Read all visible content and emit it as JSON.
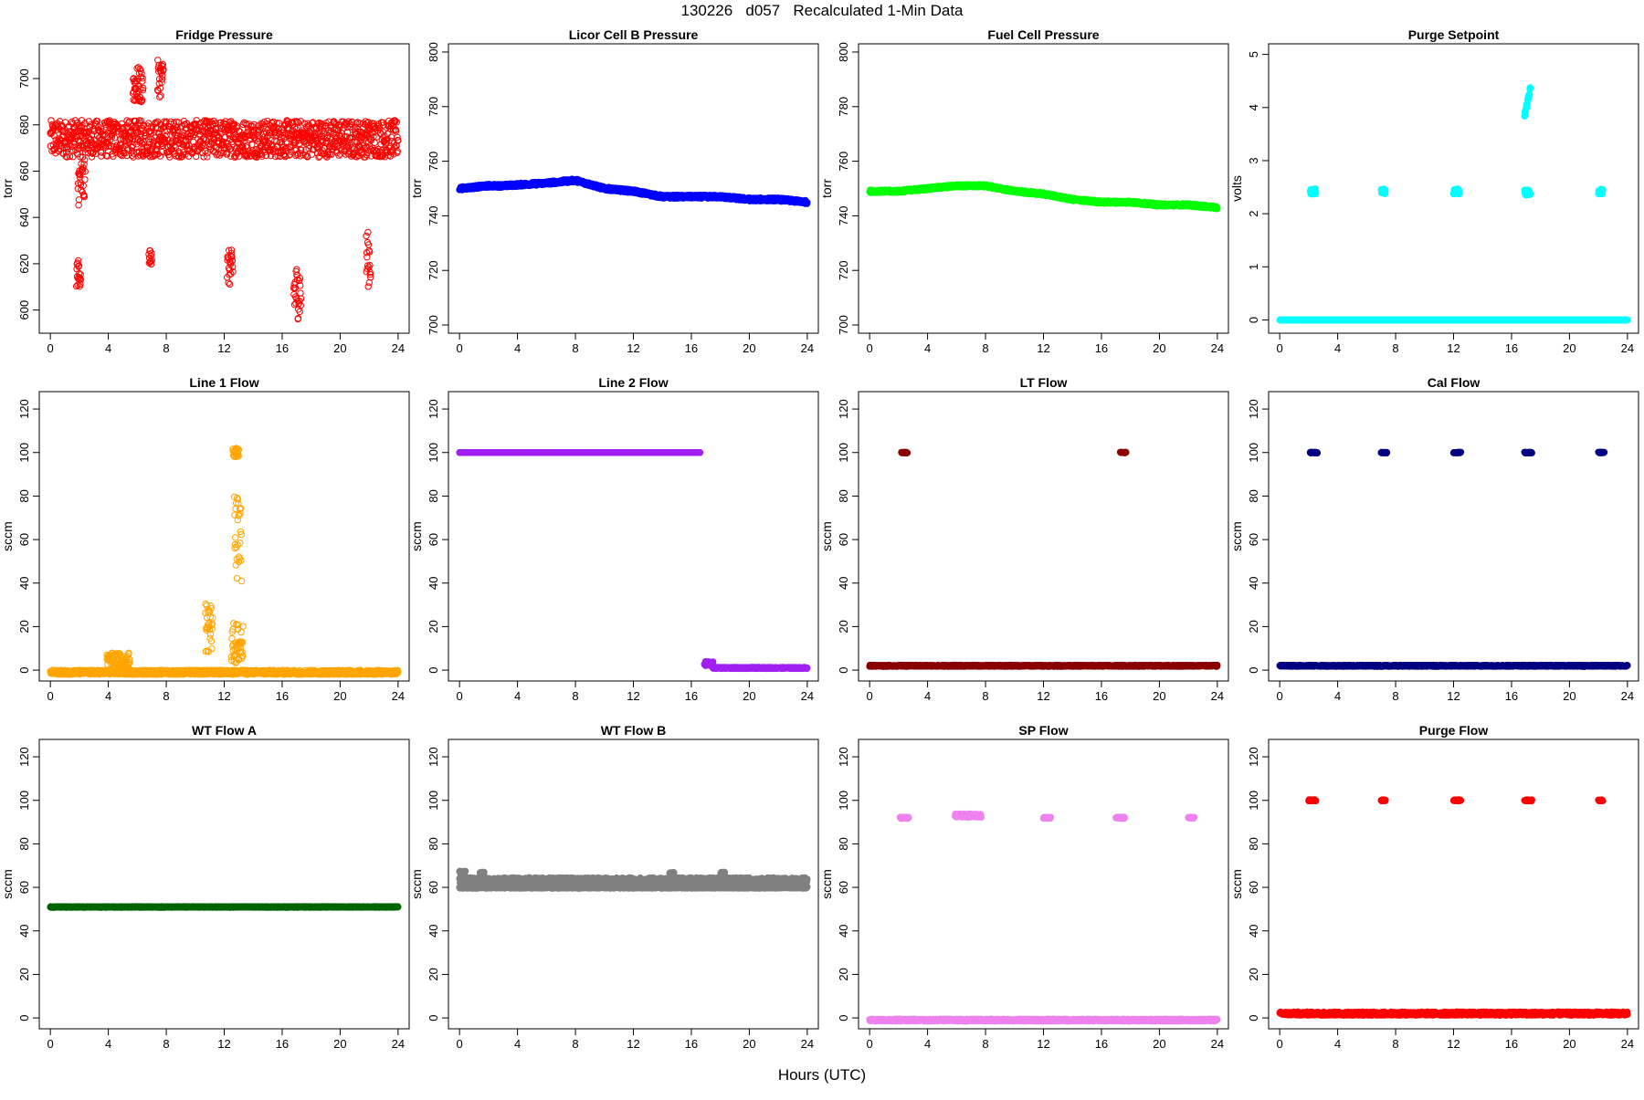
{
  "page": {
    "title": "130226   d057   Recalculated 1-Min Data",
    "xlabel": "Hours (UTC)"
  },
  "chart_data": [
    {
      "type": "scatter",
      "title": "Fridge Pressure",
      "ylabel": "torr",
      "color": "#ff0000",
      "xlim": [
        0,
        24
      ],
      "ylim": [
        590,
        715
      ],
      "yticks": [
        600,
        620,
        640,
        660,
        680,
        700
      ],
      "xticks": [
        0,
        4,
        8,
        12,
        16,
        20,
        24
      ],
      "filled": false,
      "series": [
        {
          "x": [
            0,
            24
          ],
          "y": [
            674,
            674
          ],
          "spread": 8
        },
        {
          "x": [
            5.7,
            6.4
          ],
          "y": [
            697,
            697
          ],
          "spread": 8
        },
        {
          "x": [
            7.4,
            7.8
          ],
          "y": [
            700,
            700
          ],
          "spread": 8
        },
        {
          "x": [
            1.9,
            2.4
          ],
          "y": [
            655,
            655
          ],
          "spread": 10
        },
        {
          "x": [
            1.8,
            2.1
          ],
          "y": [
            616,
            616
          ],
          "spread": 6
        },
        {
          "x": [
            12.2,
            12.6
          ],
          "y": [
            618,
            618
          ],
          "spread": 8
        },
        {
          "x": [
            16.8,
            17.3
          ],
          "y": [
            608,
            608
          ],
          "spread": 12
        },
        {
          "x": [
            21.8,
            22.1
          ],
          "y": [
            622,
            622
          ],
          "spread": 12
        },
        {
          "x": [
            6.8,
            7.0
          ],
          "y": [
            622,
            622
          ],
          "spread": 4
        }
      ]
    },
    {
      "type": "scatter",
      "title": "Licor Cell B Pressure",
      "ylabel": "torr",
      "color": "#0000ff",
      "xlim": [
        0,
        24
      ],
      "ylim": [
        697,
        803
      ],
      "yticks": [
        700,
        720,
        740,
        760,
        780,
        800
      ],
      "xticks": [
        0,
        4,
        8,
        12,
        16,
        20,
        24
      ],
      "filled": true,
      "series": [
        {
          "x": [
            0,
            2,
            3,
            6,
            8,
            10,
            12,
            14,
            16,
            18,
            20,
            22,
            24
          ],
          "y": [
            750,
            751,
            751,
            752,
            753,
            750,
            749,
            747,
            747,
            747,
            746,
            746,
            745
          ],
          "spread": 0.6
        }
      ]
    },
    {
      "type": "scatter",
      "title": "Fuel Cell Pressure",
      "ylabel": "torr",
      "color": "#00ff00",
      "xlim": [
        0,
        24
      ],
      "ylim": [
        697,
        803
      ],
      "yticks": [
        700,
        720,
        740,
        760,
        780,
        800
      ],
      "xticks": [
        0,
        4,
        8,
        12,
        16,
        20,
        24
      ],
      "filled": true,
      "series": [
        {
          "x": [
            0,
            2,
            4,
            6,
            8,
            10,
            12,
            14,
            16,
            18,
            20,
            22,
            24
          ],
          "y": [
            749,
            749,
            750,
            751,
            751,
            749,
            748,
            746,
            745,
            745,
            744,
            744,
            743
          ],
          "spread": 0.5
        }
      ]
    },
    {
      "type": "scatter",
      "title": "Purge Setpoint",
      "ylabel": "volts",
      "color": "#00ffff",
      "xlim": [
        0,
        24
      ],
      "ylim": [
        -0.25,
        5.2
      ],
      "yticks": [
        0,
        1,
        2,
        3,
        4,
        5
      ],
      "xticks": [
        0,
        4,
        8,
        12,
        16,
        20,
        24
      ],
      "filled": true,
      "series": [
        {
          "x": [
            0,
            24
          ],
          "y": [
            0,
            0
          ],
          "spread": 0
        },
        {
          "x": [
            2.1,
            2.5
          ],
          "y": [
            2.42,
            2.42
          ],
          "spread": 0.05
        },
        {
          "x": [
            7.0,
            7.3
          ],
          "y": [
            2.42,
            2.42
          ],
          "spread": 0.05
        },
        {
          "x": [
            12.0,
            12.4
          ],
          "y": [
            2.42,
            2.42
          ],
          "spread": 0.05
        },
        {
          "x": [
            16.9,
            17.3
          ],
          "y": [
            2.4,
            2.4
          ],
          "spread": 0.05
        },
        {
          "x": [
            22.0,
            22.3
          ],
          "y": [
            2.42,
            2.42
          ],
          "spread": 0.05
        },
        {
          "x": [
            16.9,
            17.3
          ],
          "y": [
            3.85,
            4.35
          ],
          "spread": 0.05
        }
      ]
    },
    {
      "type": "scatter",
      "title": "Line 1 Flow",
      "ylabel": "sccm",
      "color": "#ffa500",
      "xlim": [
        0,
        24
      ],
      "ylim": [
        -5,
        128
      ],
      "yticks": [
        0,
        20,
        40,
        60,
        80,
        100,
        120
      ],
      "xticks": [
        0,
        4,
        8,
        12,
        16,
        20,
        24
      ],
      "filled": false,
      "series": [
        {
          "x": [
            0,
            24
          ],
          "y": [
            -1,
            -1
          ],
          "spread": 1
        },
        {
          "x": [
            3.9,
            5.5
          ],
          "y": [
            4,
            4
          ],
          "spread": 4
        },
        {
          "x": [
            10.7,
            11.2
          ],
          "y": [
            20,
            20
          ],
          "spread": 12
        },
        {
          "x": [
            12.6,
            13.0
          ],
          "y": [
            100,
            100
          ],
          "spread": 2
        },
        {
          "x": [
            12.7,
            13.2
          ],
          "y": [
            60,
            60
          ],
          "spread": 20
        },
        {
          "x": [
            12.5,
            13.3
          ],
          "y": [
            12,
            12
          ],
          "spread": 10
        }
      ]
    },
    {
      "type": "scatter",
      "title": "Line 2 Flow",
      "ylabel": "sccm",
      "color": "#a020f0",
      "xlim": [
        0,
        24
      ],
      "ylim": [
        -5,
        128
      ],
      "yticks": [
        0,
        20,
        40,
        60,
        80,
        100,
        120
      ],
      "xticks": [
        0,
        4,
        8,
        12,
        16,
        20,
        24
      ],
      "filled": true,
      "series": [
        {
          "x": [
            0,
            16.6
          ],
          "y": [
            100,
            100
          ],
          "spread": 0
        },
        {
          "x": [
            16.9,
            17.5
          ],
          "y": [
            3,
            3
          ],
          "spread": 1
        },
        {
          "x": [
            17.5,
            24
          ],
          "y": [
            1,
            1
          ],
          "spread": 0.3
        }
      ]
    },
    {
      "type": "scatter",
      "title": "LT Flow",
      "ylabel": "sccm",
      "color": "#8b0000",
      "xlim": [
        0,
        24
      ],
      "ylim": [
        -5,
        128
      ],
      "yticks": [
        0,
        20,
        40,
        60,
        80,
        100,
        120
      ],
      "xticks": [
        0,
        4,
        8,
        12,
        16,
        20,
        24
      ],
      "filled": true,
      "series": [
        {
          "x": [
            0,
            24
          ],
          "y": [
            2,
            2
          ],
          "spread": 0.3
        },
        {
          "x": [
            2.2,
            2.6
          ],
          "y": [
            100,
            100
          ],
          "spread": 0.2
        },
        {
          "x": [
            17.3,
            17.7
          ],
          "y": [
            100,
            100
          ],
          "spread": 0.2
        }
      ]
    },
    {
      "type": "scatter",
      "title": "Cal Flow",
      "ylabel": "sccm",
      "color": "#000080",
      "xlim": [
        0,
        24
      ],
      "ylim": [
        -5,
        128
      ],
      "yticks": [
        0,
        20,
        40,
        60,
        80,
        100,
        120
      ],
      "xticks": [
        0,
        4,
        8,
        12,
        16,
        20,
        24
      ],
      "filled": true,
      "series": [
        {
          "x": [
            0,
            24
          ],
          "y": [
            2,
            2
          ],
          "spread": 0.3
        },
        {
          "x": [
            2.1,
            2.6
          ],
          "y": [
            100,
            100
          ],
          "spread": 0.2
        },
        {
          "x": [
            7.0,
            7.4
          ],
          "y": [
            100,
            100
          ],
          "spread": 0.2
        },
        {
          "x": [
            12.0,
            12.5
          ],
          "y": [
            100,
            100
          ],
          "spread": 0.2
        },
        {
          "x": [
            16.9,
            17.4
          ],
          "y": [
            100,
            100
          ],
          "spread": 0.2
        },
        {
          "x": [
            22.0,
            22.4
          ],
          "y": [
            100,
            100
          ],
          "spread": 0.2
        }
      ]
    },
    {
      "type": "scatter",
      "title": "WT Flow A",
      "ylabel": "sccm",
      "color": "#006400",
      "xlim": [
        0,
        24
      ],
      "ylim": [
        -5,
        128
      ],
      "yticks": [
        0,
        20,
        40,
        60,
        80,
        100,
        120
      ],
      "xticks": [
        0,
        4,
        8,
        12,
        16,
        20,
        24
      ],
      "filled": true,
      "series": [
        {
          "x": [
            0,
            24
          ],
          "y": [
            51,
            51
          ],
          "spread": 0.2
        }
      ]
    },
    {
      "type": "scatter",
      "title": "WT Flow B",
      "ylabel": "sccm",
      "color": "#808080",
      "xlim": [
        0,
        24
      ],
      "ylim": [
        -5,
        128
      ],
      "yticks": [
        0,
        20,
        40,
        60,
        80,
        100,
        120
      ],
      "xticks": [
        0,
        4,
        8,
        12,
        16,
        20,
        24
      ],
      "filled": true,
      "series": [
        {
          "x": [
            0,
            24
          ],
          "y": [
            60,
            60
          ],
          "spread": 0.4
        },
        {
          "x": [
            0,
            0.4
          ],
          "y": [
            67,
            67
          ],
          "spread": 0.5
        },
        {
          "x": [
            1.4,
            1.7
          ],
          "y": [
            66,
            66
          ],
          "spread": 1
        },
        {
          "x": [
            14.5,
            14.8
          ],
          "y": [
            66,
            66
          ],
          "spread": 1
        },
        {
          "x": [
            18,
            18.3
          ],
          "y": [
            66,
            66
          ],
          "spread": 1
        },
        {
          "x": [
            0,
            24
          ],
          "y": [
            63,
            63
          ],
          "spread": 1.5
        }
      ]
    },
    {
      "type": "scatter",
      "title": "SP Flow",
      "ylabel": "sccm",
      "color": "#ee82ee",
      "xlim": [
        0,
        24
      ],
      "ylim": [
        -5,
        128
      ],
      "yticks": [
        0,
        20,
        40,
        60,
        80,
        100,
        120
      ],
      "xticks": [
        0,
        4,
        8,
        12,
        16,
        20,
        24
      ],
      "filled": true,
      "series": [
        {
          "x": [
            0,
            24
          ],
          "y": [
            -1,
            -1
          ],
          "spread": 0.5
        },
        {
          "x": [
            2.1,
            2.7
          ],
          "y": [
            92,
            92
          ],
          "spread": 0.3
        },
        {
          "x": [
            5.9,
            7.7
          ],
          "y": [
            93,
            93
          ],
          "spread": 0.8
        },
        {
          "x": [
            12.0,
            12.5
          ],
          "y": [
            92,
            92
          ],
          "spread": 0.3
        },
        {
          "x": [
            17.0,
            17.6
          ],
          "y": [
            92,
            92
          ],
          "spread": 0.3
        },
        {
          "x": [
            22.0,
            22.4
          ],
          "y": [
            92,
            92
          ],
          "spread": 0.3
        }
      ]
    },
    {
      "type": "scatter",
      "title": "Purge Flow",
      "ylabel": "sccm",
      "color": "#ff0000",
      "xlim": [
        0,
        24
      ],
      "ylim": [
        -5,
        128
      ],
      "yticks": [
        0,
        20,
        40,
        60,
        80,
        100,
        120
      ],
      "xticks": [
        0,
        4,
        8,
        12,
        16,
        20,
        24
      ],
      "filled": true,
      "series": [
        {
          "x": [
            0,
            24
          ],
          "y": [
            2,
            2
          ],
          "spread": 0.8
        },
        {
          "x": [
            2.0,
            2.5
          ],
          "y": [
            100,
            100
          ],
          "spread": 0.3
        },
        {
          "x": [
            7.0,
            7.3
          ],
          "y": [
            100,
            100
          ],
          "spread": 0.3
        },
        {
          "x": [
            12.0,
            12.5
          ],
          "y": [
            100,
            100
          ],
          "spread": 0.3
        },
        {
          "x": [
            16.9,
            17.4
          ],
          "y": [
            100,
            100
          ],
          "spread": 0.3
        },
        {
          "x": [
            22.0,
            22.3
          ],
          "y": [
            100,
            100
          ],
          "spread": 0.3
        }
      ]
    }
  ]
}
